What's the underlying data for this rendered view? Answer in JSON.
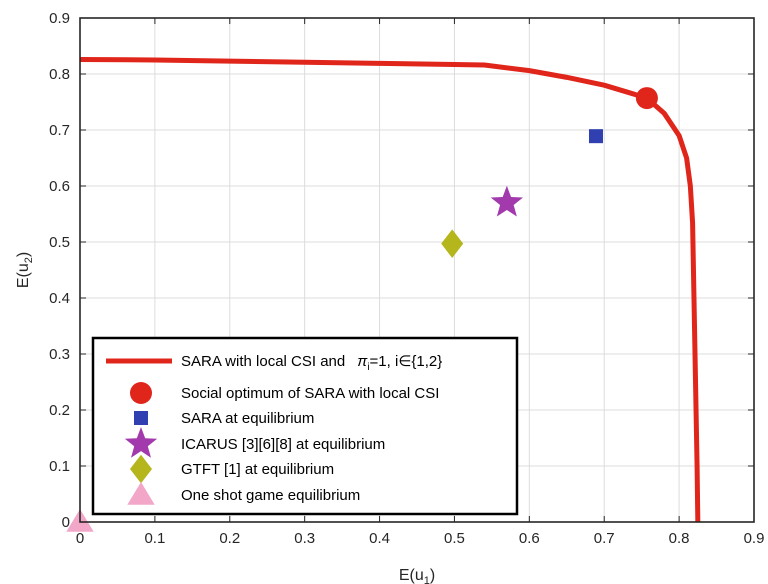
{
  "chart_data": {
    "type": "scatter",
    "xlabel": "E(u",
    "xlabel_sub": "1",
    "xlabel_suffix": ")",
    "ylabel": "E(u",
    "ylabel_sub": "2",
    "ylabel_suffix": ")",
    "xlim": [
      0,
      0.9
    ],
    "ylim": [
      0,
      0.9
    ],
    "xticks": [
      0,
      0.1,
      0.2,
      0.3,
      0.4,
      0.5,
      0.6,
      0.7,
      0.8,
      0.9
    ],
    "yticks": [
      0,
      0.1,
      0.2,
      0.3,
      0.4,
      0.5,
      0.6,
      0.7,
      0.8,
      0.9
    ],
    "xtick_labels": [
      "0",
      "0.1",
      "0.2",
      "0.3",
      "0.4",
      "0.5",
      "0.6",
      "0.7",
      "0.8",
      "0.9"
    ],
    "ytick_labels": [
      "0",
      "0.1",
      "0.2",
      "0.3",
      "0.4",
      "0.5",
      "0.6",
      "0.7",
      "0.8",
      "0.9"
    ],
    "grid": true,
    "legend_position": "bottom-left",
    "series": [
      {
        "name": "SARA with local CSI and π_i=1, i∈{1,2}",
        "kind": "line",
        "color": "#e0251b",
        "x": [
          0,
          0.1,
          0.2,
          0.3,
          0.4,
          0.5,
          0.54,
          0.6,
          0.65,
          0.7,
          0.73,
          0.757,
          0.78,
          0.8,
          0.81,
          0.815,
          0.818,
          0.824,
          0.825
        ],
        "y": [
          0.826,
          0.825,
          0.823,
          0.821,
          0.819,
          0.817,
          0.816,
          0.806,
          0.794,
          0.78,
          0.768,
          0.757,
          0.73,
          0.69,
          0.65,
          0.6,
          0.534,
          0.1,
          0
        ]
      },
      {
        "name": "Social optimum of SARA with local CSI",
        "kind": "point",
        "marker": "circle",
        "color": "#e0251b",
        "x": 0.757,
        "y": 0.757
      },
      {
        "name": "SARA at equilibrium",
        "kind": "point",
        "marker": "square",
        "color": "#3040b0",
        "x": 0.689,
        "y": 0.689
      },
      {
        "name": "ICARUS [3][6][8] at equilibrium",
        "kind": "point",
        "marker": "star",
        "color": "#a23aad",
        "x": 0.57,
        "y": 0.57
      },
      {
        "name": "GTFT [1] at equilibrium",
        "kind": "point",
        "marker": "diamond",
        "color": "#b5b51c",
        "x": 0.497,
        "y": 0.497
      },
      {
        "name": "One shot game equilibrium",
        "kind": "point",
        "marker": "triangle",
        "color": "#f2a6c8",
        "x": 0,
        "y": 0
      }
    ],
    "legend": {
      "line_label_main": "SARA with local CSI and",
      "line_label_math": "π",
      "line_label_math_sub": "i",
      "line_label_math_rest": "=1, i∈{1,2}"
    }
  }
}
